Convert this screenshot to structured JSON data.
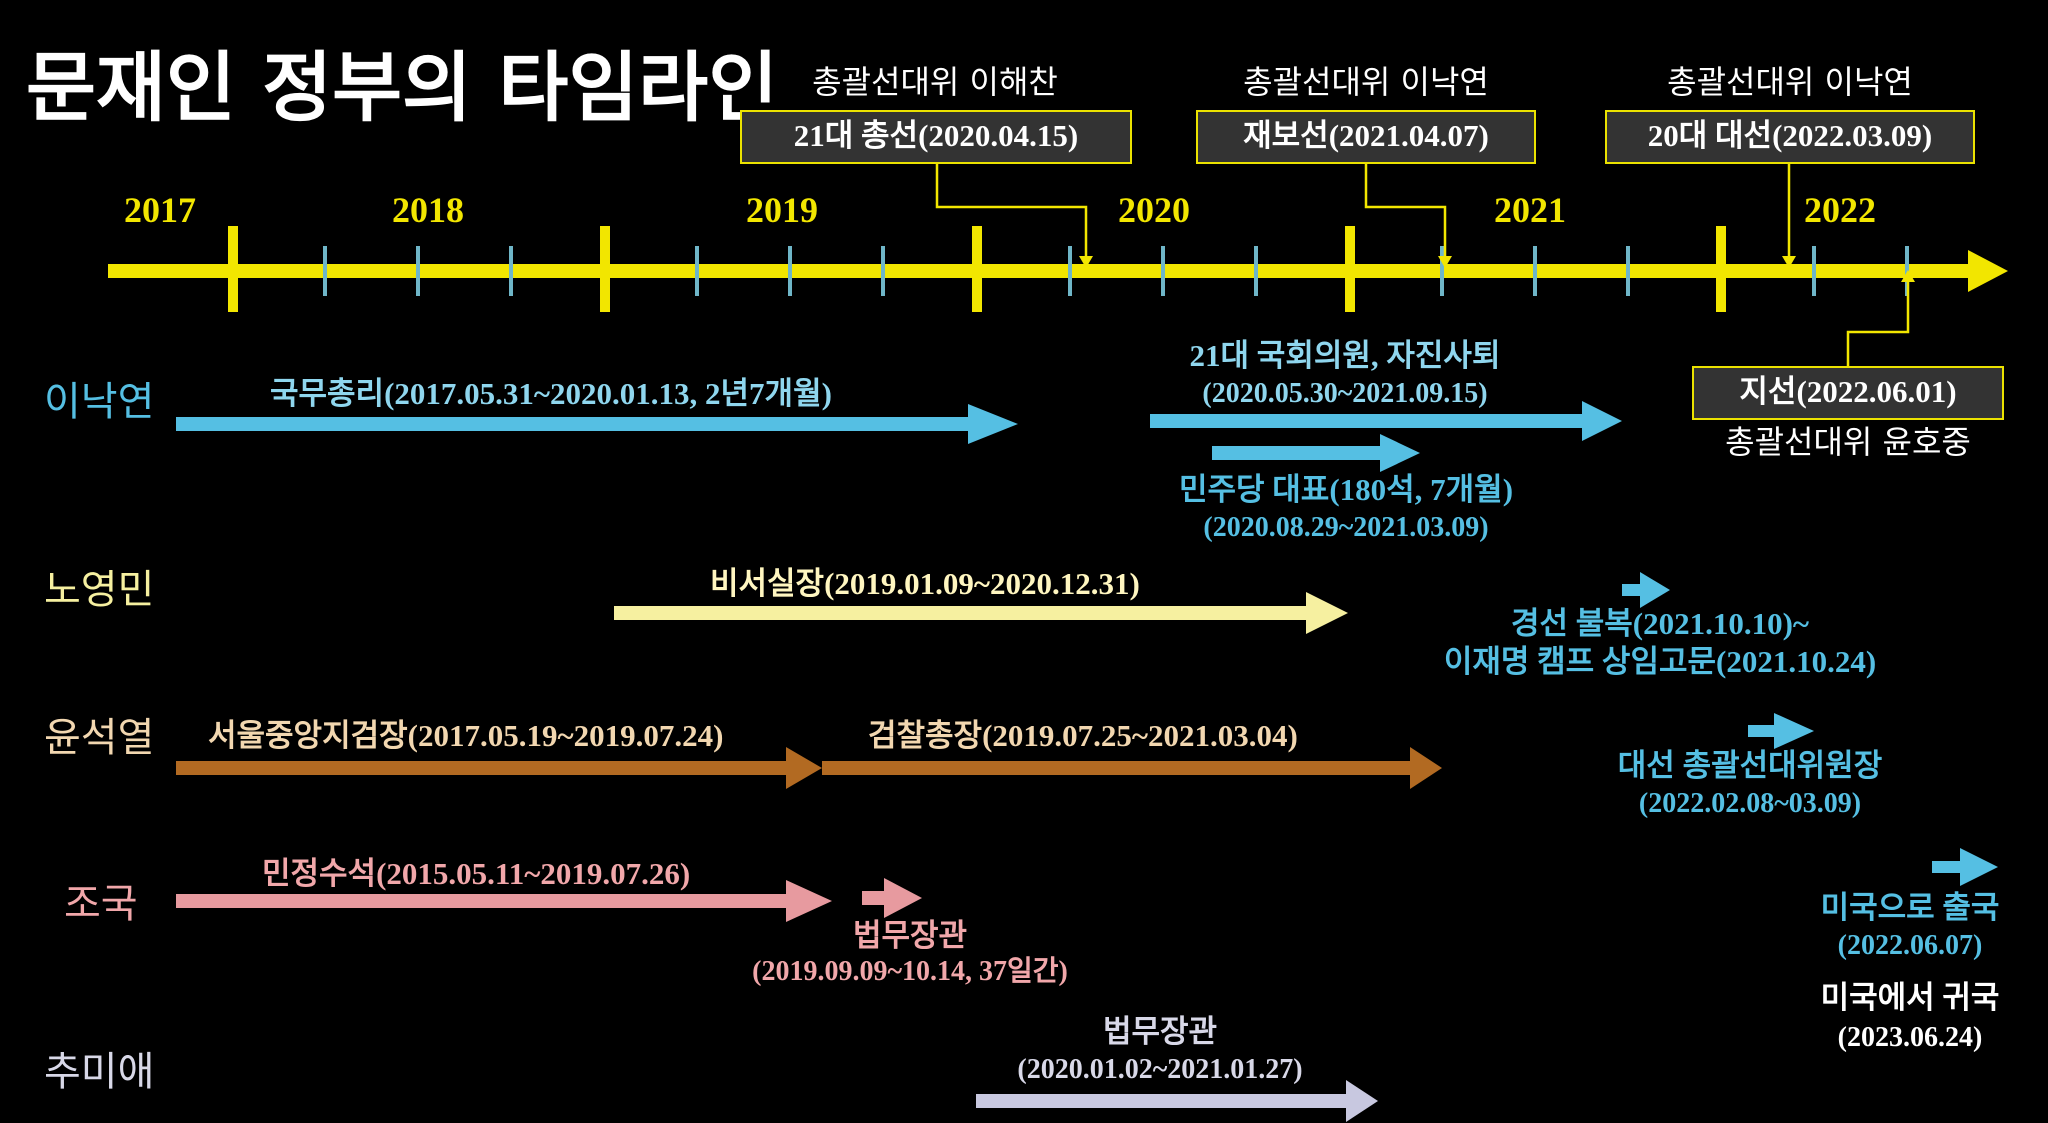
{
  "title": "문재인 정부의 타임라인",
  "colors": {
    "background": "#000000",
    "timeline": "#f2e600",
    "ticks": "#6fb6c8",
    "lee_nakyon": "#55bfe3",
    "roh_youngmin": "#f6f0a0",
    "yoon_sukyeol": "#b26a22",
    "cho_kuk": "#e79a9f",
    "choo_miae": "#c8c8e0",
    "yoon_sukyeol_label": "#f2d7b0",
    "cho_kuk_label": "#f1a7aa"
  },
  "timeline": {
    "years": [
      "2017",
      "2018",
      "2019",
      "2020",
      "2021",
      "2022"
    ]
  },
  "events": [
    {
      "top": "총괄선대위 이해찬",
      "box": "21대 총선(2020.04.15)"
    },
    {
      "top": "총괄선대위 이낙연",
      "box": "재보선(2021.04.07)"
    },
    {
      "top": "총괄선대위 이낙연",
      "box": "20대 대선(2022.03.09)"
    },
    {
      "box": "지선(2022.06.01)",
      "bottom": "총괄선대위 윤호중"
    }
  ],
  "rows": {
    "lee": {
      "name": "이낙연",
      "pm": "국무총리(2017.05.31~2020.01.13, 2년7개월)",
      "mp_1": "21대 국회의원, 자진사퇴",
      "mp_2": "(2020.05.30~2021.09.15)",
      "party_1": "민주당 대표(180석, 7개월)",
      "party_2": "(2020.08.29~2021.03.09)"
    },
    "roh": {
      "name": "노영민",
      "chief": "비서실장(2019.01.09~2020.12.31)",
      "camp_1": "경선 불복(2021.10.10)~",
      "camp_2": "이재명 캠프 상임고문(2021.10.24)"
    },
    "yoon": {
      "name": "윤석열",
      "seoul": "서울중앙지검장(2017.05.19~2019.07.24)",
      "pg": "검찰총장(2019.07.25~2021.03.04)",
      "camp_1": "대선 총괄선대위원장",
      "camp_2": "(2022.02.08~03.09)"
    },
    "cho": {
      "name": "조국",
      "civil": "민정수석(2015.05.11~2019.07.26)",
      "justice_1": "법무장관",
      "justice_2": "(2019.09.09~10.14, 37일간)",
      "us_1": "미국으로 출국",
      "us_2": "(2022.06.07)",
      "back_1": "미국에서 귀국",
      "back_2": "(2023.06.24)"
    },
    "choo": {
      "name": "추미애",
      "justice_1": "법무장관",
      "justice_2": "(2020.01.02~2021.01.27)"
    }
  }
}
